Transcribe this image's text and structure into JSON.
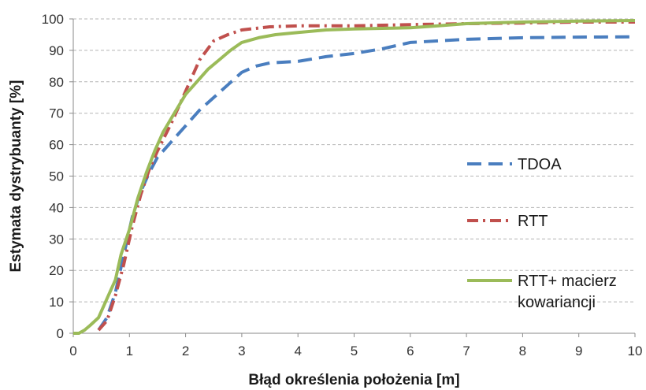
{
  "chart_data": {
    "type": "line",
    "title": "",
    "xlabel": "Błąd określenia położenia [m]",
    "ylabel": "Estymata dystrybuanty [%]",
    "xlim": [
      0,
      10
    ],
    "ylim": [
      0,
      100
    ],
    "x_ticks": [
      "0",
      "1",
      "2",
      "3",
      "4",
      "5",
      "6",
      "7",
      "8",
      "9",
      "10"
    ],
    "y_ticks": [
      "0",
      "10",
      "20",
      "30",
      "40",
      "50",
      "60",
      "70",
      "80",
      "90",
      "100"
    ],
    "grid": "horizontal dashed",
    "legend_position": "right",
    "series": [
      {
        "name": "TDOA",
        "color": "#4a7ebf",
        "style": "dashed",
        "points": [
          [
            0.45,
            1
          ],
          [
            0.6,
            5
          ],
          [
            0.75,
            13
          ],
          [
            0.9,
            25
          ],
          [
            1.05,
            37
          ],
          [
            1.2,
            45
          ],
          [
            1.35,
            51
          ],
          [
            1.5,
            56
          ],
          [
            1.75,
            61
          ],
          [
            2.0,
            66
          ],
          [
            2.25,
            71
          ],
          [
            2.5,
            75
          ],
          [
            2.75,
            79
          ],
          [
            3.0,
            83
          ],
          [
            3.25,
            85
          ],
          [
            3.5,
            86
          ],
          [
            4.0,
            86.5
          ],
          [
            4.5,
            88
          ],
          [
            5.0,
            89
          ],
          [
            5.5,
            90.5
          ],
          [
            6.0,
            92.5
          ],
          [
            6.5,
            93
          ],
          [
            7.0,
            93.5
          ],
          [
            8.0,
            94
          ],
          [
            9.0,
            94.2
          ],
          [
            10.0,
            94.3
          ]
        ]
      },
      {
        "name": "RTT",
        "color": "#c0504d",
        "style": "dash-dot",
        "points": [
          [
            0.45,
            1
          ],
          [
            0.6,
            4
          ],
          [
            0.75,
            12
          ],
          [
            0.9,
            22
          ],
          [
            1.05,
            34
          ],
          [
            1.2,
            44
          ],
          [
            1.35,
            52
          ],
          [
            1.5,
            58
          ],
          [
            1.75,
            67
          ],
          [
            2.0,
            77
          ],
          [
            2.25,
            87
          ],
          [
            2.5,
            93
          ],
          [
            2.75,
            95
          ],
          [
            3.0,
            96.5
          ],
          [
            3.5,
            97.5
          ],
          [
            4.0,
            97.8
          ],
          [
            5.0,
            97.8
          ],
          [
            6.0,
            98.2
          ],
          [
            7.0,
            98.5
          ],
          [
            8.0,
            98.7
          ],
          [
            9.0,
            99
          ],
          [
            10.0,
            99
          ]
        ]
      },
      {
        "name": "RTT+ macierz kowariancji",
        "name_lines": [
          "RTT+ macierz",
          "kowariancji"
        ],
        "color": "#9bbb59",
        "style": "solid",
        "points": [
          [
            0.0,
            0
          ],
          [
            0.1,
            0
          ],
          [
            0.2,
            1
          ],
          [
            0.3,
            2.5
          ],
          [
            0.45,
            5
          ],
          [
            0.6,
            11
          ],
          [
            0.75,
            17
          ],
          [
            0.85,
            25
          ],
          [
            1.0,
            33
          ],
          [
            1.15,
            43
          ],
          [
            1.3,
            51
          ],
          [
            1.45,
            58
          ],
          [
            1.6,
            64
          ],
          [
            1.8,
            70
          ],
          [
            2.0,
            76
          ],
          [
            2.2,
            80
          ],
          [
            2.4,
            84
          ],
          [
            2.6,
            87
          ],
          [
            2.8,
            90
          ],
          [
            3.0,
            92.5
          ],
          [
            3.3,
            94
          ],
          [
            3.6,
            95
          ],
          [
            4.0,
            95.7
          ],
          [
            4.5,
            96.5
          ],
          [
            5.0,
            96.8
          ],
          [
            6.0,
            97.2
          ],
          [
            6.5,
            97.8
          ],
          [
            7.0,
            98.5
          ],
          [
            8.0,
            99
          ],
          [
            9.0,
            99.3
          ],
          [
            10.0,
            99.5
          ]
        ]
      }
    ]
  }
}
